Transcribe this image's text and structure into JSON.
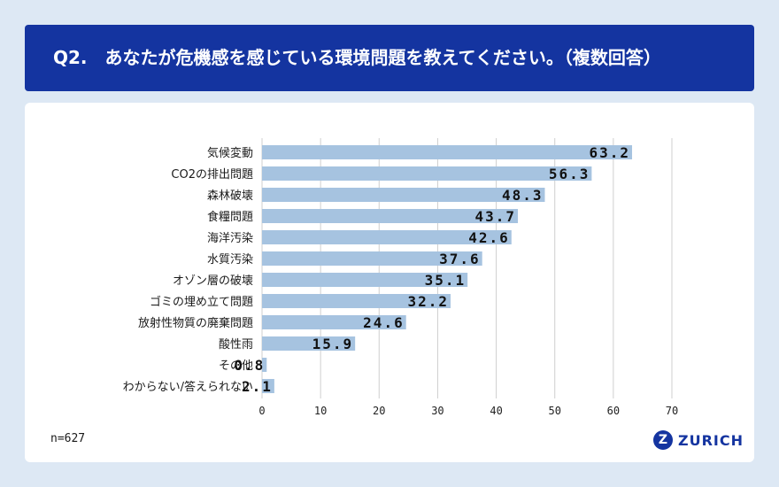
{
  "header": {
    "title": "Q2.　あなたが危機感を感じている環境問題を教えてください。（複数回答）"
  },
  "footnote": "n=627",
  "brand": {
    "mark": "Z",
    "name": "ZURICH"
  },
  "colors": {
    "header_bg": "#1434a0",
    "bar": "#a6c3e0",
    "page_bg": "#dde8f4",
    "grid": "#cfcfcf"
  },
  "chart_data": {
    "type": "bar",
    "orientation": "horizontal",
    "categories": [
      "気候変動",
      "CO2の排出問題",
      "森林破壊",
      "食糧問題",
      "海洋汚染",
      "水質汚染",
      "オゾン層の破壊",
      "ゴミの埋め立て問題",
      "放射性物質の廃棄問題",
      "酸性雨",
      "その他",
      "わからない/答えられない"
    ],
    "values": [
      63.2,
      56.3,
      48.3,
      43.7,
      42.6,
      37.6,
      35.1,
      32.2,
      24.6,
      15.9,
      0.8,
      2.1
    ],
    "value_labels": [
      "63.2",
      "56.3",
      "48.3",
      "43.7",
      "42.6",
      "37.6",
      "35.1",
      "32.2",
      "24.6",
      "15.9",
      "0.8",
      "2.1"
    ],
    "xlim": [
      0,
      70
    ],
    "xticks": [
      "0",
      "10",
      "20",
      "30",
      "40",
      "50",
      "60",
      "70"
    ],
    "grid": true,
    "xlabel": "",
    "ylabel": ""
  }
}
